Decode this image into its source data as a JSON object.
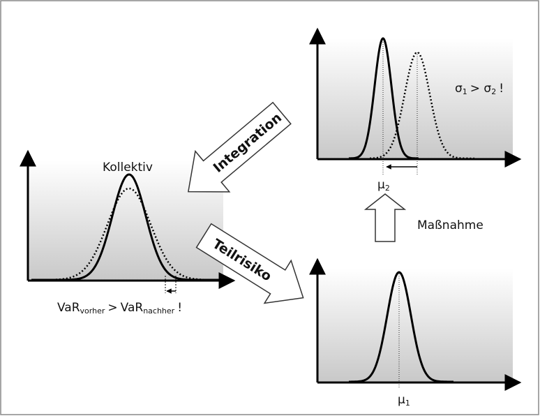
{
  "panels": {
    "collective": {
      "label": "Kollektiv",
      "var_note": {
        "base1": "VaR",
        "sub1": "vorher",
        "op": ">",
        "base2": "VaR",
        "sub2": "nachher",
        "end": "!"
      }
    },
    "top": {
      "sigma_note": {
        "s1": "σ",
        "sub1": "1",
        "op": "> σ",
        "sub2": "2",
        "end": "!"
      },
      "mu_label": {
        "base": "μ",
        "sub": "2"
      }
    },
    "bottom": {
      "mu_label": {
        "base": "μ",
        "sub": "1"
      }
    }
  },
  "arrows": {
    "integration": "Integration",
    "teilrisiko": "Teilrisiko",
    "massnahme": "Maßnahme"
  }
}
